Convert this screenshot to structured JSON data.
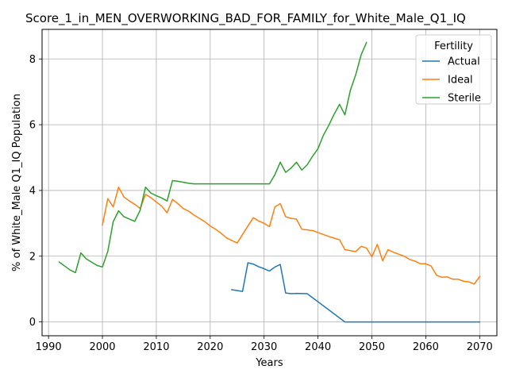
{
  "chart_data": {
    "type": "line",
    "title": "Score_1_in_MEN_OVERWORKING_BAD_FOR_FAMILY_for_White_Male_Q1_IQ",
    "xlabel": "Years",
    "ylabel": "% of White_Male Q1_IQ Population",
    "xlim": [
      1988.8,
      2073.2
    ],
    "ylim": [
      -0.42,
      8.9
    ],
    "xticks": [
      1990,
      2000,
      2010,
      2020,
      2030,
      2040,
      2050,
      2060,
      2070
    ],
    "yticks": [
      0,
      2,
      4,
      6,
      8
    ],
    "grid": true,
    "legend": {
      "title": "Fertility",
      "placement": "top-right"
    },
    "colors": {
      "Actual": "#1f77b4",
      "Ideal": "#ff7f0e",
      "Sterile": "#2ca02c"
    },
    "series": [
      {
        "name": "Actual",
        "points": [
          [
            2024,
            0.98
          ],
          [
            2026,
            0.93
          ],
          [
            2027,
            1.8
          ],
          [
            2028,
            1.76
          ],
          [
            2029,
            1.68
          ],
          [
            2030,
            1.62
          ],
          [
            2031,
            1.55
          ],
          [
            2032,
            1.67
          ],
          [
            2033,
            1.75
          ],
          [
            2034,
            0.88
          ],
          [
            2035,
            0.86
          ],
          [
            2036,
            0.87
          ],
          [
            2038,
            0.86
          ],
          [
            2045,
            0.0
          ],
          [
            2070,
            0.0
          ]
        ]
      },
      {
        "name": "Ideal",
        "points": [
          [
            2000,
            2.95
          ],
          [
            2001,
            3.75
          ],
          [
            2002,
            3.5
          ],
          [
            2003,
            4.1
          ],
          [
            2004,
            3.8
          ],
          [
            2005,
            3.68
          ],
          [
            2006,
            3.58
          ],
          [
            2007,
            3.45
          ],
          [
            2008,
            3.88
          ],
          [
            2009,
            3.78
          ],
          [
            2010,
            3.65
          ],
          [
            2011,
            3.52
          ],
          [
            2012,
            3.32
          ],
          [
            2013,
            3.73
          ],
          [
            2014,
            3.6
          ],
          [
            2015,
            3.45
          ],
          [
            2016,
            3.37
          ],
          [
            2017,
            3.25
          ],
          [
            2018,
            3.15
          ],
          [
            2019,
            3.05
          ],
          [
            2020,
            2.92
          ],
          [
            2021,
            2.82
          ],
          [
            2022,
            2.7
          ],
          [
            2023,
            2.56
          ],
          [
            2024,
            2.48
          ],
          [
            2025,
            2.4
          ],
          [
            2026,
            2.66
          ],
          [
            2027,
            2.92
          ],
          [
            2028,
            3.17
          ],
          [
            2029,
            3.07
          ],
          [
            2030,
            3.0
          ],
          [
            2031,
            2.9
          ],
          [
            2032,
            3.5
          ],
          [
            2033,
            3.6
          ],
          [
            2034,
            3.2
          ],
          [
            2035,
            3.15
          ],
          [
            2036,
            3.13
          ],
          [
            2037,
            2.82
          ],
          [
            2038,
            2.8
          ],
          [
            2039,
            2.78
          ],
          [
            2040,
            2.72
          ],
          [
            2041,
            2.66
          ],
          [
            2042,
            2.6
          ],
          [
            2043,
            2.55
          ],
          [
            2044,
            2.5
          ],
          [
            2045,
            2.2
          ],
          [
            2046,
            2.17
          ],
          [
            2047,
            2.14
          ],
          [
            2048,
            2.3
          ],
          [
            2049,
            2.25
          ],
          [
            2050,
            1.98
          ],
          [
            2051,
            2.36
          ],
          [
            2052,
            1.86
          ],
          [
            2053,
            2.2
          ],
          [
            2054,
            2.12
          ],
          [
            2055,
            2.06
          ],
          [
            2056,
            2.0
          ],
          [
            2057,
            1.9
          ],
          [
            2058,
            1.85
          ],
          [
            2059,
            1.77
          ],
          [
            2060,
            1.77
          ],
          [
            2061,
            1.7
          ],
          [
            2062,
            1.42
          ],
          [
            2063,
            1.36
          ],
          [
            2064,
            1.37
          ],
          [
            2065,
            1.3
          ],
          [
            2066,
            1.3
          ],
          [
            2067,
            1.24
          ],
          [
            2068,
            1.22
          ],
          [
            2069,
            1.15
          ],
          [
            2070,
            1.38
          ]
        ]
      },
      {
        "name": "Sterile",
        "points": [
          [
            1992,
            1.82
          ],
          [
            1993,
            1.7
          ],
          [
            1994,
            1.58
          ],
          [
            1995,
            1.5
          ],
          [
            1996,
            2.1
          ],
          [
            1997,
            1.92
          ],
          [
            1998,
            1.82
          ],
          [
            1999,
            1.72
          ],
          [
            2000,
            1.67
          ],
          [
            2001,
            2.15
          ],
          [
            2002,
            3.05
          ],
          [
            2003,
            3.38
          ],
          [
            2004,
            3.2
          ],
          [
            2005,
            3.13
          ],
          [
            2006,
            3.06
          ],
          [
            2007,
            3.4
          ],
          [
            2008,
            4.1
          ],
          [
            2009,
            3.92
          ],
          [
            2010,
            3.84
          ],
          [
            2011,
            3.77
          ],
          [
            2012,
            3.68
          ],
          [
            2013,
            4.3
          ],
          [
            2014,
            4.28
          ],
          [
            2015,
            4.25
          ],
          [
            2016,
            4.22
          ],
          [
            2017,
            4.2
          ],
          [
            2031,
            4.2
          ],
          [
            2032,
            4.48
          ],
          [
            2033,
            4.86
          ],
          [
            2034,
            4.55
          ],
          [
            2035,
            4.68
          ],
          [
            2036,
            4.86
          ],
          [
            2037,
            4.62
          ],
          [
            2038,
            4.78
          ],
          [
            2039,
            5.04
          ],
          [
            2040,
            5.27
          ],
          [
            2041,
            5.68
          ],
          [
            2042,
            5.98
          ],
          [
            2043,
            6.32
          ],
          [
            2044,
            6.62
          ],
          [
            2045,
            6.3
          ],
          [
            2046,
            7.04
          ],
          [
            2047,
            7.52
          ],
          [
            2048,
            8.12
          ],
          [
            2049,
            8.5
          ]
        ]
      }
    ]
  }
}
